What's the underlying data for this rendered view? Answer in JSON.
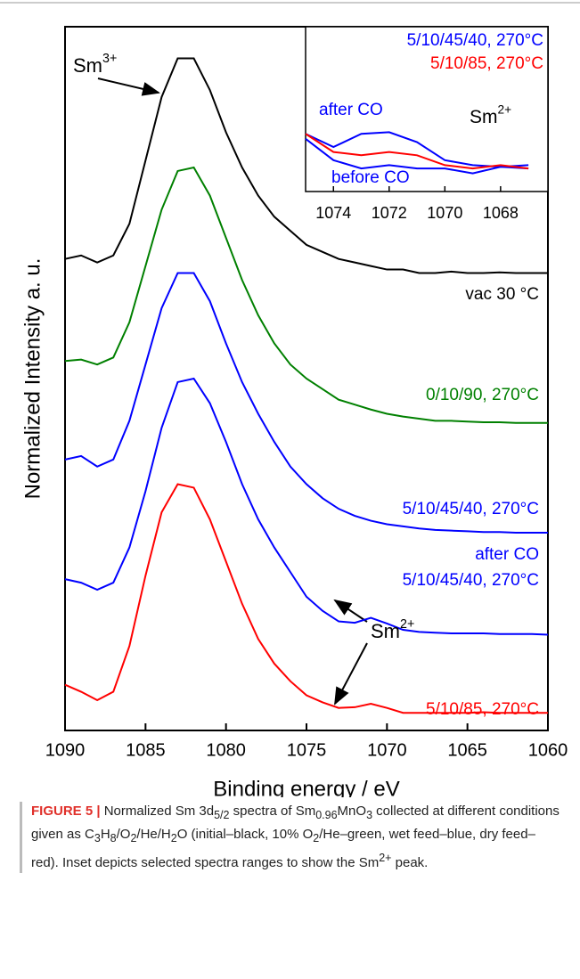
{
  "chart_data": [
    {
      "type": "line",
      "x_label": "Binding energy / eV",
      "y_label": "Normalized Intensity a. u.",
      "x": [
        1090,
        1089,
        1088,
        1087,
        1086,
        1085,
        1084,
        1083,
        1082,
        1081,
        1080,
        1079,
        1078,
        1077,
        1076,
        1075,
        1074,
        1073,
        1072,
        1071,
        1070,
        1069,
        1068,
        1067,
        1066,
        1065,
        1064,
        1063,
        1062,
        1061,
        1060
      ],
      "xlim": [
        1090,
        1060
      ],
      "xticks": [
        1090,
        1085,
        1080,
        1075,
        1070,
        1065,
        1060
      ],
      "ylim": [
        0,
        100
      ],
      "series": [
        {
          "name": "vac 30 °C",
          "color": "#000000",
          "values": [
            67,
            67.5,
            66.5,
            67.5,
            72,
            81,
            90,
            95.5,
            95.5,
            91,
            85,
            80,
            76,
            73,
            71,
            69,
            68,
            67,
            66.5,
            66,
            65.5,
            65.5,
            65,
            65,
            65.2,
            65,
            65,
            65.1,
            65,
            65,
            65
          ]
        },
        {
          "name": "0/10/90, 270°C",
          "color": "#008000",
          "values": [
            52.5,
            52.7,
            52,
            53,
            58,
            66,
            74,
            79.5,
            80,
            76,
            70,
            64,
            59,
            55,
            52,
            50,
            48.5,
            47,
            46.3,
            45.6,
            45,
            44.6,
            44.3,
            44,
            44,
            43.9,
            43.8,
            43.8,
            43.7,
            43.7,
            43.7
          ]
        },
        {
          "name": "5/10/45/40, 270°C",
          "color": "#0000ff",
          "values": [
            38.5,
            39,
            37.5,
            38.5,
            44,
            52,
            60,
            65,
            65,
            61,
            55,
            49.5,
            45,
            41,
            37.5,
            35,
            33,
            31.5,
            30.5,
            29.8,
            29.3,
            29,
            28.7,
            28.5,
            28.4,
            28.3,
            28.2,
            28.2,
            28.1,
            28.1,
            28.1
          ]
        },
        {
          "name": "5/10/45/40, 270°C",
          "note": "after CO",
          "color": "#0000ff",
          "values": [
            21.5,
            21,
            20,
            21,
            26,
            34,
            43,
            49.5,
            50,
            46.5,
            41,
            35,
            30,
            26,
            22.5,
            19,
            17,
            15.5,
            15.3,
            16,
            15.2,
            14.3,
            14,
            13.9,
            13.8,
            13.8,
            13.8,
            13.7,
            13.7,
            13.7,
            13.6
          ]
        },
        {
          "name": "5/10/85, 270°C",
          "color": "#ff0000",
          "values": [
            6.5,
            5.5,
            4.3,
            5.5,
            12,
            22,
            31,
            35,
            34.5,
            30,
            24,
            18,
            13,
            9.5,
            7,
            5,
            4,
            3.2,
            3.3,
            3.8,
            3.2,
            2.5,
            2.5,
            2.5,
            2.5,
            2.5,
            2.6,
            2.5,
            2.5,
            2.5,
            2.5
          ]
        }
      ],
      "annotations": [
        {
          "text": "Sm",
          "sup": "3+"
        },
        {
          "text": "Sm",
          "sup": "2+"
        }
      ]
    },
    {
      "type": "line",
      "x": [
        1075,
        1074,
        1073,
        1072,
        1071,
        1070,
        1069,
        1068,
        1067
      ],
      "xlim": [
        1075,
        1066.3
      ],
      "xticks": [
        1074,
        1072,
        1070,
        1068
      ],
      "ylim": [
        0,
        100
      ],
      "legend": [
        {
          "text": "5/10/45/40, 270°C",
          "color": "#0000ff"
        },
        {
          "text": "5/10/85, 270°C",
          "color": "#ff0000"
        }
      ],
      "series": [
        {
          "name": "after CO",
          "color": "#0000ff",
          "values": [
            35,
            27,
            35,
            36,
            30,
            19,
            16,
            15,
            16
          ]
        },
        {
          "name": "before CO",
          "color": "#0000ff",
          "values": [
            32,
            19,
            14,
            16,
            14,
            14,
            11,
            15,
            14
          ]
        },
        {
          "name": "5/10/85, 270°C",
          "color": "#ff0000",
          "values": [
            35,
            24,
            22,
            24,
            22,
            16,
            14,
            16,
            14
          ]
        }
      ],
      "annotations": [
        {
          "text": "Sm",
          "sup": "2+"
        }
      ]
    }
  ],
  "caption": [
    {
      "t": "FIGURE 5 | ",
      "s": "b"
    },
    {
      "t": "Normalized Sm 3d"
    },
    {
      "t": "5/2",
      "s": "sub"
    },
    {
      "t": " spectra of Sm"
    },
    {
      "t": "0.96",
      "s": "sub"
    },
    {
      "t": "MnO"
    },
    {
      "t": "3",
      "s": "sub"
    },
    {
      "t": " collected at different conditions given as C"
    },
    {
      "t": "3",
      "s": "sub"
    },
    {
      "t": "H"
    },
    {
      "t": "8",
      "s": "sub"
    },
    {
      "t": "/O"
    },
    {
      "t": "2",
      "s": "sub"
    },
    {
      "t": "/He/H"
    },
    {
      "t": "2",
      "s": "sub"
    },
    {
      "t": "O (initial–black, 10% O"
    },
    {
      "t": "2",
      "s": "sub"
    },
    {
      "t": "/He–green, wet feed–blue, dry feed–red). Inset depicts selected spectra ranges to show the Sm"
    },
    {
      "t": "2+",
      "s": "sup"
    },
    {
      "t": " peak."
    }
  ]
}
